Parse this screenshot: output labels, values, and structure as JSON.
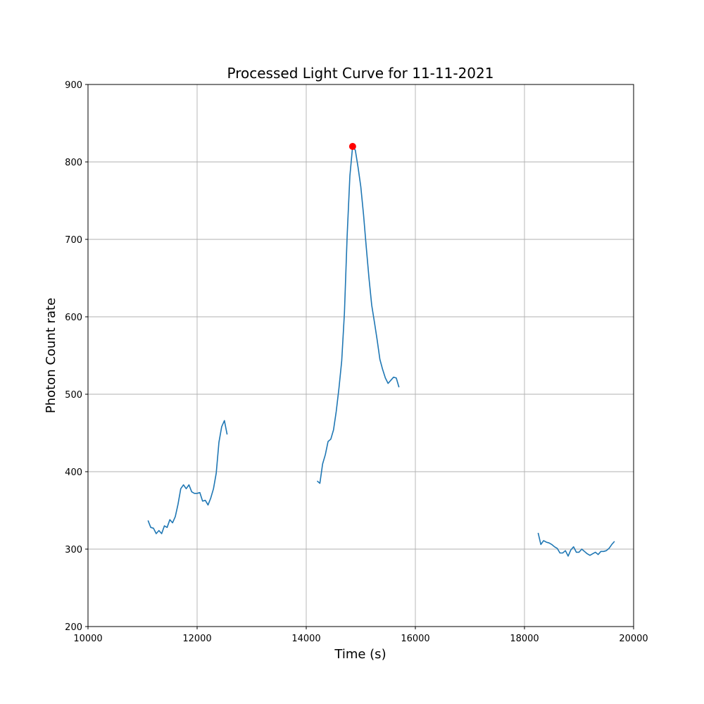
{
  "chart_data": {
    "type": "line",
    "title": "Processed Light Curve for 11-11-2021",
    "xlabel": "Time (s)",
    "ylabel": "Photon Count rate",
    "xlim": [
      10000,
      20000
    ],
    "ylim": [
      200,
      900
    ],
    "xticks": [
      10000,
      12000,
      14000,
      16000,
      18000,
      20000
    ],
    "yticks": [
      200,
      300,
      400,
      500,
      600,
      700,
      800,
      900
    ],
    "grid": true,
    "line_color": "#1f77b4",
    "peak_color": "#ff0000",
    "peak": {
      "x": 14850,
      "y": 820
    },
    "segments": [
      {
        "x": [
          11100,
          11150,
          11200,
          11250,
          11300,
          11350,
          11400,
          11450,
          11500,
          11550,
          11600,
          11650,
          11700,
          11750,
          11800,
          11850,
          11900,
          11950,
          12000,
          12050,
          12100,
          12150,
          12200,
          12250,
          12300,
          12350,
          12400,
          12450,
          12500,
          12550
        ],
        "y": [
          337,
          328,
          327,
          320,
          324,
          320,
          330,
          328,
          338,
          334,
          342,
          358,
          378,
          383,
          378,
          383,
          374,
          372,
          372,
          373,
          362,
          363,
          357,
          366,
          378,
          398,
          438,
          458,
          466,
          448
        ]
      },
      {
        "x": [
          14200,
          14250,
          14300,
          14350,
          14400,
          14450,
          14500,
          14550,
          14600,
          14650,
          14700,
          14750,
          14800,
          14850,
          14900,
          14950,
          15000,
          15050,
          15100,
          15150,
          15200,
          15250,
          15300,
          15350,
          15400,
          15450,
          15500,
          15550,
          15600,
          15650,
          15700
        ],
        "y": [
          388,
          385,
          410,
          422,
          439,
          442,
          454,
          478,
          508,
          543,
          605,
          705,
          782,
          820,
          815,
          793,
          768,
          732,
          690,
          650,
          615,
          593,
          570,
          545,
          532,
          521,
          514,
          518,
          522,
          521,
          509
        ]
      },
      {
        "x": [
          18250,
          18300,
          18350,
          18400,
          18450,
          18500,
          18550,
          18600,
          18650,
          18700,
          18750,
          18800,
          18850,
          18900,
          18950,
          19000,
          19050,
          19100,
          19150,
          19200,
          19250,
          19300,
          19350,
          19400,
          19450,
          19500,
          19550,
          19600,
          19650
        ],
        "y": [
          321,
          306,
          311,
          309,
          308,
          306,
          303,
          301,
          295,
          295,
          298,
          291,
          299,
          303,
          296,
          296,
          300,
          297,
          294,
          292,
          294,
          296,
          293,
          297,
          297,
          298,
          301,
          306,
          310
        ]
      }
    ]
  }
}
